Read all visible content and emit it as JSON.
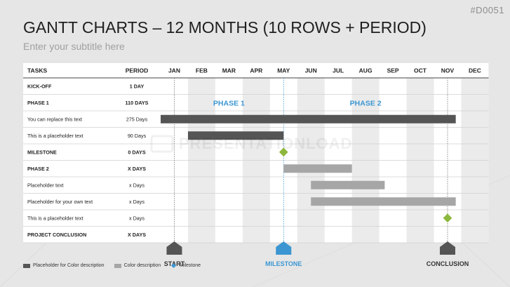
{
  "slide": {
    "code": "#D0051",
    "title": "GANTT CHARTS – 12 MONTHS (10 ROWS + PERIOD)",
    "subtitle": "Enter your subtitle here",
    "watermark": "PRESENTATIONLOAD"
  },
  "colors": {
    "dark_bar": "#555555",
    "light_bar": "#a6a6a6",
    "milestone_blue": "#3b96d2",
    "diamond_green": "#8db83e",
    "header_bg": "#ffffff",
    "stripe": "#e6e6e6"
  },
  "chart_data": {
    "type": "gantt",
    "columns": {
      "tasks": "TASKS",
      "period": "PERIOD"
    },
    "months": [
      "JAN",
      "FEB",
      "MAR",
      "APR",
      "MAY",
      "JUN",
      "JUL",
      "AUG",
      "SEP",
      "OCT",
      "NOV",
      "DEC"
    ],
    "rows": [
      {
        "task": "KICK-OFF",
        "period": "1 DAY",
        "bold": true
      },
      {
        "task": "PHASE 1",
        "period": "110 DAYS",
        "bold": true
      },
      {
        "task": "You can replace this text",
        "period": "275 Days",
        "bold": false,
        "bar": {
          "start": 0,
          "end": 10.8,
          "style": "dark"
        }
      },
      {
        "task": "This is a placeholder text",
        "period": "90 Days",
        "bold": false,
        "bar": {
          "start": 1,
          "end": 4.5,
          "style": "dark"
        }
      },
      {
        "task": "MILESTONE",
        "period": "0 DAYS",
        "bold": true,
        "diamond": 4.5
      },
      {
        "task": "PHASE 2",
        "period": "X DAYS",
        "bold": true,
        "bar": {
          "start": 4.5,
          "end": 7,
          "style": "light"
        }
      },
      {
        "task": "Placeholder text",
        "period": "x Days",
        "bold": false,
        "bar": {
          "start": 5.5,
          "end": 8.2,
          "style": "light"
        }
      },
      {
        "task": "Placeholder for your own text",
        "period": "x Days",
        "bold": false,
        "bar": {
          "start": 5.5,
          "end": 10.8,
          "style": "light"
        }
      },
      {
        "task": "This is a placeholder text",
        "period": "x Days",
        "bold": false,
        "diamond": 10.5
      },
      {
        "task": "PROJECT CONCLUSION",
        "period": "X DAYS",
        "bold": true
      }
    ],
    "phases": [
      {
        "label": "PHASE 1",
        "start": 0.5,
        "end": 4.5
      },
      {
        "label": "PHASE 2",
        "start": 4.5,
        "end": 10.5
      }
    ],
    "markers": [
      {
        "label": "START",
        "at": 0.5,
        "color": "dark"
      },
      {
        "label": "MILESTONE",
        "at": 4.5,
        "color": "blue"
      },
      {
        "label": "CONCLUSION",
        "at": 10.5,
        "color": "dark"
      }
    ]
  },
  "legend": [
    {
      "label": "Placeholder for Color description",
      "shape": "bar",
      "color": "#555555"
    },
    {
      "label": "Color description",
      "shape": "bar",
      "color": "#a6a6a6"
    },
    {
      "label": "Milestone",
      "shape": "diamond",
      "color": "#3b96d2"
    }
  ]
}
